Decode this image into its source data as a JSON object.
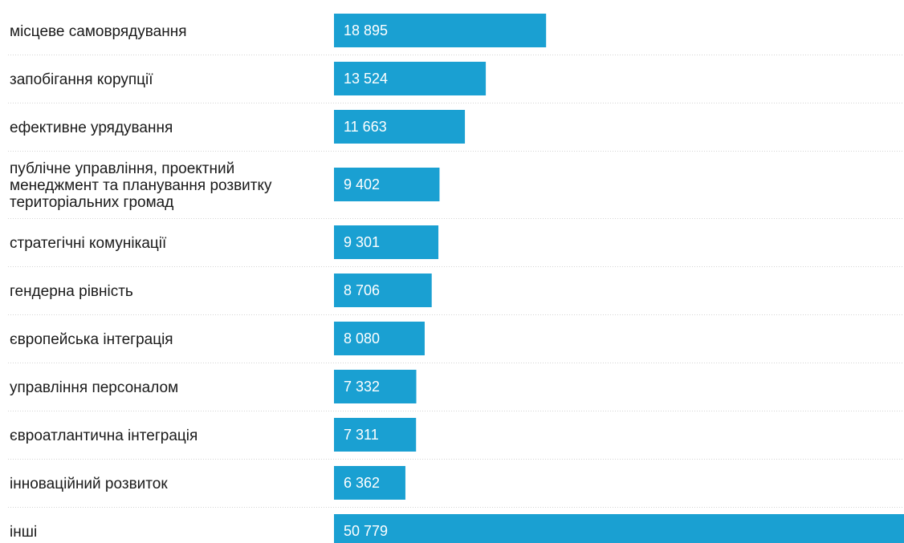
{
  "chart_data": {
    "type": "bar",
    "orientation": "horizontal",
    "categories": [
      "місцеве самоврядування",
      "запобігання корупції",
      "ефективне урядування",
      "публічне управління, проектний менеджмент та планування розвитку територіальних громад",
      "стратегічні комунікації",
      "гендерна рівність",
      "європейська інтеграція",
      "управління персоналом",
      "євроатлантична інтеграція",
      "інноваційний розвиток",
      "інші"
    ],
    "category_lines": [
      [
        "місцеве самоврядування"
      ],
      [
        "запобігання корупції"
      ],
      [
        "ефективне урядування"
      ],
      [
        "публічне управління, проектний",
        "менеджмент та планування розвитку",
        "територіальних громад"
      ],
      [
        "стратегічні комунікації"
      ],
      [
        "гендерна рівність"
      ],
      [
        "європейська інтеграція"
      ],
      [
        "управління персоналом"
      ],
      [
        "євроатлантична інтеграція"
      ],
      [
        "інноваційний розвиток"
      ],
      [
        "інші"
      ]
    ],
    "values": [
      18895,
      13524,
      11663,
      9402,
      9301,
      8706,
      8080,
      7332,
      7311,
      6362,
      50779
    ],
    "value_labels": [
      "18 895",
      "13 524",
      "11 663",
      "9 402",
      "9 301",
      "8 706",
      "8 080",
      "7 332",
      "7 311",
      "6 362",
      "50 779"
    ],
    "bar_color": "#1aa0d2",
    "grid": false,
    "legend": "none"
  }
}
